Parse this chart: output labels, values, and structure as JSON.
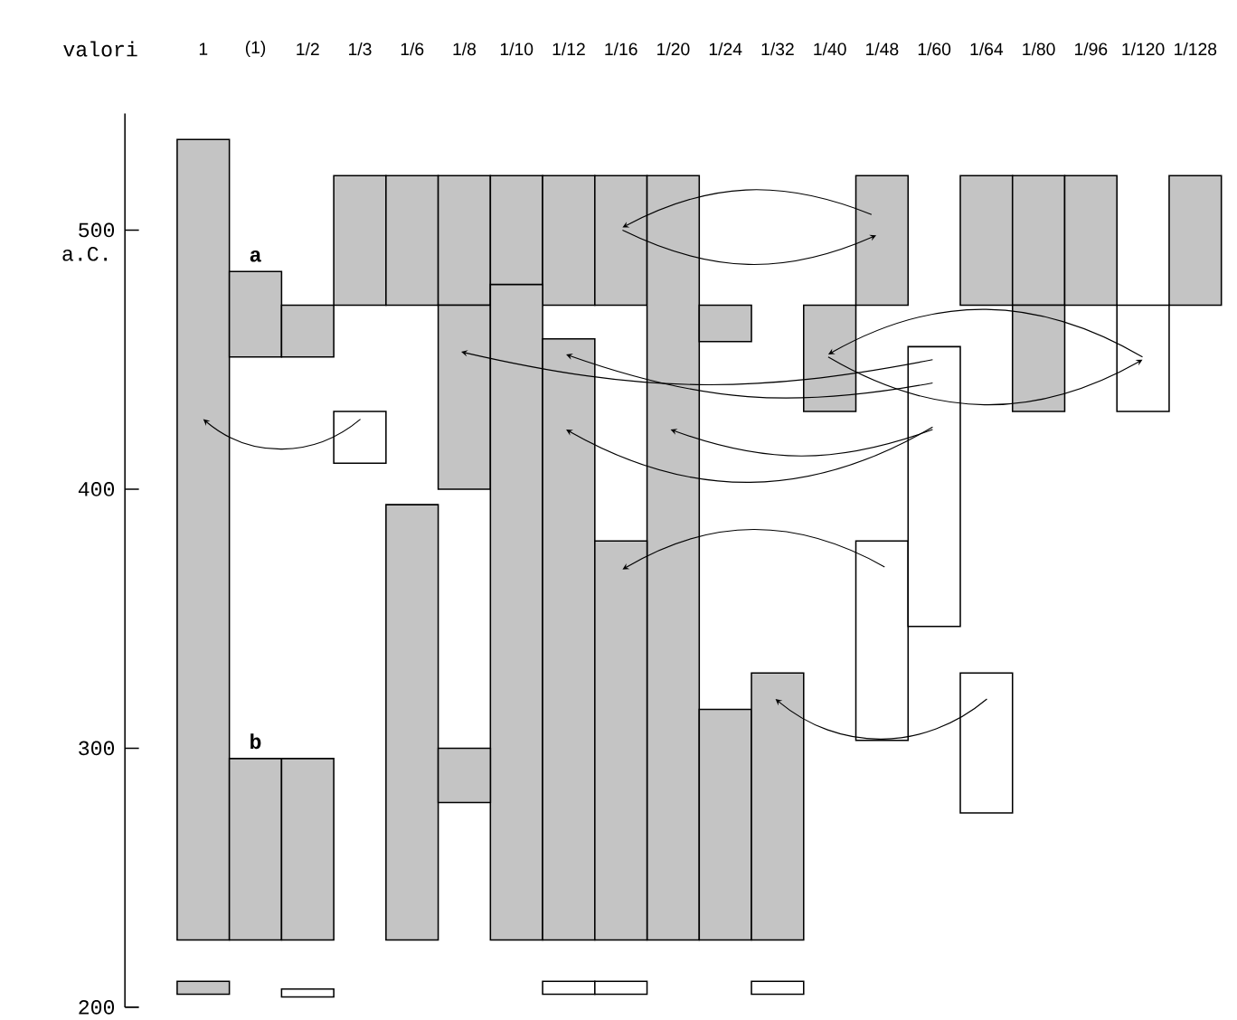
{
  "chart_data": {
    "type": "bar",
    "xlabel": "valori",
    "ylabel": "a.C.",
    "categories": [
      "1",
      "(1)",
      "1/2",
      "1/3",
      "1/6",
      "1/8",
      "1/10",
      "1/12",
      "1/16",
      "1/20",
      "1/24",
      "1/32",
      "1/40",
      "1/48",
      "1/60",
      "1/64",
      "1/80",
      "1/96",
      "1/120",
      "1/128"
    ],
    "series": [
      {
        "color": "#c4c4c4",
        "base": [
          226,
          451,
          451,
          471,
          471,
          471,
          471,
          471,
          471,
          226,
          457,
          null,
          430,
          471,
          null,
          471,
          471,
          471,
          null,
          471
        ],
        "values": [
          309,
          33,
          20,
          50,
          50,
          50,
          50,
          50,
          50,
          295,
          14,
          null,
          41,
          50,
          null,
          50,
          50,
          50,
          null,
          50
        ]
      },
      {
        "color": "#c4c4c4",
        "base": [
          205,
          226,
          226,
          null,
          226,
          400,
          226,
          226,
          226,
          null,
          226,
          226,
          null,
          null,
          null,
          null,
          430,
          null,
          null,
          null
        ],
        "values": [
          5,
          70,
          70,
          null,
          168,
          71,
          253,
          232,
          154,
          null,
          89,
          103,
          null,
          null,
          null,
          null,
          41,
          null,
          null,
          null
        ]
      },
      {
        "color": "#c4c4c4",
        "base": [
          null,
          null,
          null,
          null,
          null,
          279,
          null,
          null,
          null,
          null,
          null,
          null,
          null,
          null,
          null,
          null,
          null,
          null,
          null,
          null
        ],
        "values": [
          null,
          null,
          null,
          null,
          null,
          21,
          null,
          null,
          null,
          null,
          null,
          null,
          null,
          null,
          null,
          null,
          null,
          null,
          null,
          null
        ]
      },
      {
        "color": "#ffffff",
        "base": [
          null,
          null,
          204,
          410,
          null,
          null,
          null,
          205,
          205,
          null,
          null,
          205,
          null,
          303,
          347,
          275,
          null,
          null,
          430,
          null
        ],
        "values": [
          null,
          null,
          3,
          20,
          null,
          null,
          null,
          5,
          5,
          null,
          null,
          5,
          null,
          77,
          108,
          54,
          null,
          null,
          41,
          null
        ]
      }
    ],
    "ylim": [
      200,
      545
    ],
    "yticks": [
      200,
      300,
      400,
      500
    ],
    "annotations": [
      {
        "text": "a",
        "x": "(1)",
        "y": 484
      },
      {
        "text": "b",
        "x": "(1)",
        "y": 296
      }
    ]
  }
}
